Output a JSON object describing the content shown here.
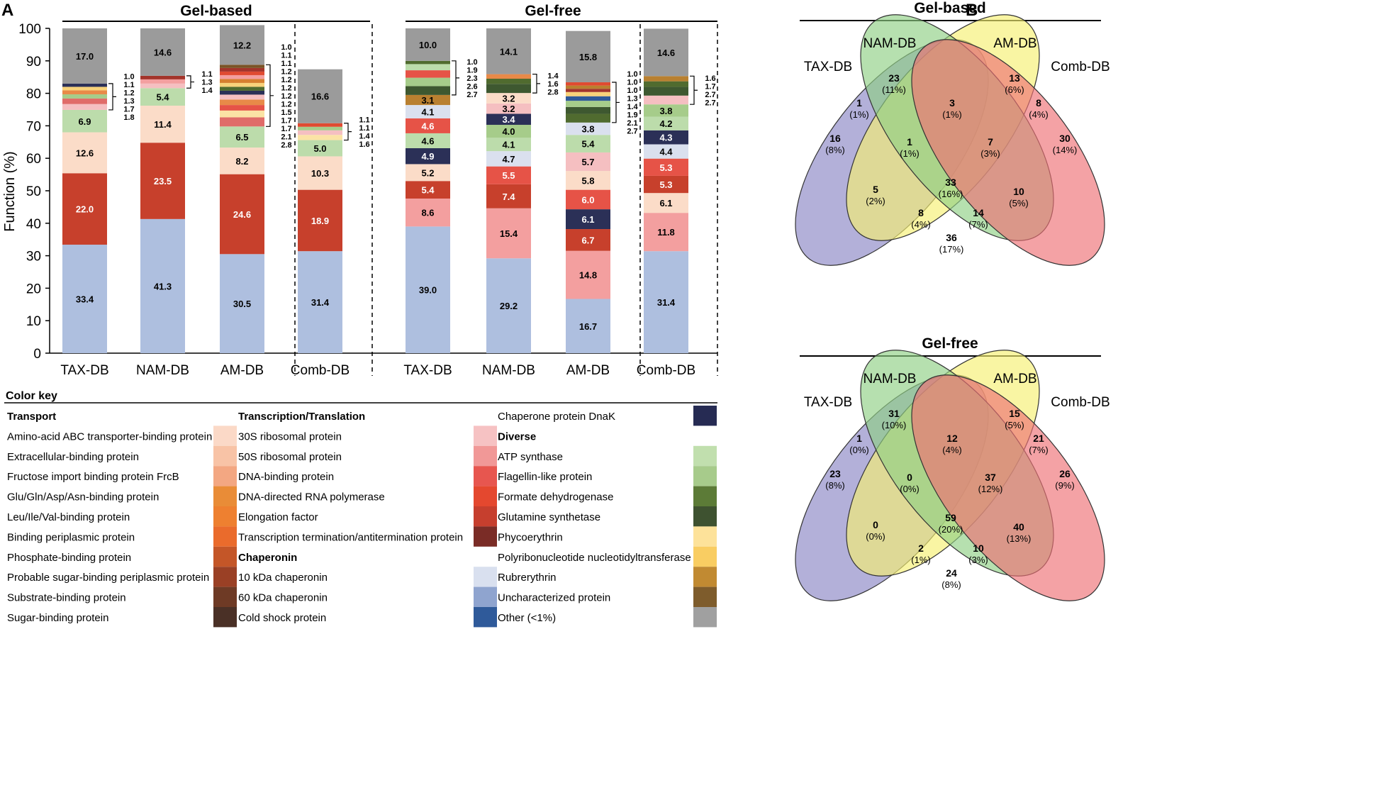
{
  "panel_a_label": "A",
  "panel_b_label": "B",
  "colors": {
    "blue": "#aebfdf",
    "red": "#c7402c",
    "peach": "#fbdcc8",
    "lightgreen": "#bcdcab",
    "gray": "#9b9b9b",
    "pink": "#f39f9f",
    "salmon": "#f5bfc1",
    "redbright": "#e65347",
    "darkred": "#a3342b",
    "navy": "#2b3057",
    "lavender": "#dae0ee",
    "green2": "#a6cc8a",
    "darkgreen": "#506b2f",
    "olive": "#3e5830",
    "orange": "#d67f2f",
    "brown": "#b98030",
    "yellow": "#f8d27a",
    "ltyellow": "#fbe3a5",
    "amber": "#e88a48",
    "redorange": "#e04a31",
    "mauve": "#e06c69",
    "darkbrown": "#7a5427",
    "blue2": "#2f5a9a"
  },
  "chart_data": [
    {
      "type": "stacked_bar",
      "title_groups": [
        "Gel-based",
        "Gel-free"
      ],
      "ylabel": "Function (%)",
      "ylim": [
        0,
        100
      ],
      "yticks": [
        "0",
        "10",
        "20",
        "30",
        "40",
        "50",
        "60",
        "70",
        "80",
        "90",
        "100"
      ],
      "bars": [
        {
          "label": "TAX-DB",
          "group": "Gel-based",
          "segments": [
            {
              "v": 33.4,
              "c": "blue",
              "t": "33.4"
            },
            {
              "v": 22.0,
              "c": "red",
              "t": "22.0"
            },
            {
              "v": 12.6,
              "c": "peach",
              "t": "12.6"
            },
            {
              "v": 6.9,
              "c": "lightgreen",
              "t": "6.9"
            },
            {
              "v": 1.8,
              "c": "salmon"
            },
            {
              "v": 1.7,
              "c": "mauve"
            },
            {
              "v": 1.3,
              "c": "green2"
            },
            {
              "v": 1.2,
              "c": "amber"
            },
            {
              "v": 1.1,
              "c": "yellow"
            },
            {
              "v": 1.0,
              "c": "navy"
            },
            {
              "v": 17.0,
              "c": "gray",
              "t": "17.0"
            }
          ],
          "side": [
            "1.0",
            "1.1",
            "1.2",
            "1.3",
            "1.7",
            "1.8"
          ]
        },
        {
          "label": "NAM-DB",
          "group": "Gel-based",
          "segments": [
            {
              "v": 41.3,
              "c": "blue",
              "t": "41.3"
            },
            {
              "v": 23.5,
              "c": "red",
              "t": "23.5"
            },
            {
              "v": 11.4,
              "c": "peach",
              "t": "11.4"
            },
            {
              "v": 5.4,
              "c": "lightgreen",
              "t": "5.4"
            },
            {
              "v": 1.4,
              "c": "salmon"
            },
            {
              "v": 1.3,
              "c": "pink"
            },
            {
              "v": 1.1,
              "c": "darkred"
            },
            {
              "v": 14.6,
              "c": "gray",
              "t": "14.6"
            }
          ],
          "side": [
            "1.1",
            "1.3",
            "1.4"
          ]
        },
        {
          "label": "AM-DB",
          "group": "Gel-based",
          "segments": [
            {
              "v": 30.5,
              "c": "blue",
              "t": "30.5"
            },
            {
              "v": 24.6,
              "c": "red",
              "t": "24.6"
            },
            {
              "v": 8.2,
              "c": "peach",
              "t": "8.2"
            },
            {
              "v": 6.5,
              "c": "lightgreen",
              "t": "6.5"
            },
            {
              "v": 2.8,
              "c": "mauve"
            },
            {
              "v": 2.1,
              "c": "ltyellow"
            },
            {
              "v": 1.7,
              "c": "redbright"
            },
            {
              "v": 1.7,
              "c": "amber"
            },
            {
              "v": 1.5,
              "c": "salmon"
            },
            {
              "v": 1.2,
              "c": "navy"
            },
            {
              "v": 1.2,
              "c": "darkgreen"
            },
            {
              "v": 1.2,
              "c": "yellow"
            },
            {
              "v": 1.2,
              "c": "orange"
            },
            {
              "v": 1.2,
              "c": "pink"
            },
            {
              "v": 1.1,
              "c": "redorange"
            },
            {
              "v": 1.1,
              "c": "darkred"
            },
            {
              "v": 1.0,
              "c": "darkbrown"
            },
            {
              "v": 12.2,
              "c": "gray",
              "t": "12.2"
            }
          ],
          "side": [
            "1.0",
            "1.1",
            "1.1",
            "1.2",
            "1.2",
            "1.2",
            "1.2",
            "1.2",
            "1.5",
            "1.7",
            "1.7",
            "2.1",
            "2.8"
          ]
        },
        {
          "label": "Comb-DB",
          "group": "Gel-based",
          "segments": [
            {
              "v": 31.4,
              "c": "blue",
              "t": "31.4"
            },
            {
              "v": 18.9,
              "c": "red",
              "t": "18.9"
            },
            {
              "v": 10.3,
              "c": "peach",
              "t": "10.3"
            },
            {
              "v": 5.0,
              "c": "lightgreen",
              "t": "5.0"
            },
            {
              "v": 1.6,
              "c": "ltyellow"
            },
            {
              "v": 1.4,
              "c": "salmon"
            },
            {
              "v": 1.1,
              "c": "green2"
            },
            {
              "v": 1.1,
              "c": "redorange"
            },
            {
              "v": 16.6,
              "c": "gray",
              "t": "16.6"
            }
          ],
          "side": [
            "1.1",
            "1.1",
            "1.4",
            "1.6"
          ]
        },
        {
          "label": "TAX-DB",
          "group": "Gel-free",
          "segments": [
            {
              "v": 39.0,
              "c": "blue",
              "t": "39.0"
            },
            {
              "v": 8.6,
              "c": "pink",
              "t": "8.6"
            },
            {
              "v": 5.4,
              "c": "red",
              "t": "5.4"
            },
            {
              "v": 5.2,
              "c": "peach",
              "t": "5.2"
            },
            {
              "v": 4.9,
              "c": "navy",
              "t": "4.9"
            },
            {
              "v": 4.6,
              "c": "lightgreen",
              "t": "4.6"
            },
            {
              "v": 4.6,
              "c": "redbright",
              "t": "4.6"
            },
            {
              "v": 4.1,
              "c": "lavender",
              "t": "4.1"
            },
            {
              "v": 3.1,
              "c": "brown",
              "t": "3.1"
            },
            {
              "v": 2.7,
              "c": "olive"
            },
            {
              "v": 2.6,
              "c": "green2"
            },
            {
              "v": 2.3,
              "c": "redbright"
            },
            {
              "v": 1.9,
              "c": "lightgreen"
            },
            {
              "v": 1.0,
              "c": "darkgreen"
            },
            {
              "v": 10.0,
              "c": "gray",
              "t": "10.0"
            }
          ],
          "side": [
            "1.0",
            "1.9",
            "2.3",
            "2.6",
            "2.7"
          ]
        },
        {
          "label": "NAM-DB",
          "group": "Gel-free",
          "segments": [
            {
              "v": 29.2,
              "c": "blue",
              "t": "29.2"
            },
            {
              "v": 15.4,
              "c": "pink",
              "t": "15.4"
            },
            {
              "v": 7.4,
              "c": "red",
              "t": "7.4"
            },
            {
              "v": 5.5,
              "c": "redbright",
              "t": "5.5"
            },
            {
              "v": 4.7,
              "c": "lavender",
              "t": "4.7"
            },
            {
              "v": 4.1,
              "c": "lightgreen",
              "t": "4.1"
            },
            {
              "v": 4.0,
              "c": "green2",
              "t": "4.0"
            },
            {
              "v": 3.4,
              "c": "navy",
              "t": "3.4"
            },
            {
              "v": 3.2,
              "c": "salmon",
              "t": "3.2"
            },
            {
              "v": 3.2,
              "c": "peach",
              "t": "3.2"
            },
            {
              "v": 2.8,
              "c": "olive"
            },
            {
              "v": 1.6,
              "c": "darkgreen"
            },
            {
              "v": 1.4,
              "c": "amber"
            },
            {
              "v": 14.1,
              "c": "gray",
              "t": "14.1"
            }
          ],
          "side": [
            "1.4",
            "1.6",
            "2.8"
          ]
        },
        {
          "label": "AM-DB",
          "group": "Gel-free",
          "segments": [
            {
              "v": 16.7,
              "c": "blue",
              "t": "16.7"
            },
            {
              "v": 14.8,
              "c": "pink",
              "t": "14.8"
            },
            {
              "v": 6.7,
              "c": "red",
              "t": "6.7"
            },
            {
              "v": 6.1,
              "c": "navy",
              "t": "6.1"
            },
            {
              "v": 6.0,
              "c": "redbright",
              "t": "6.0"
            },
            {
              "v": 5.8,
              "c": "peach",
              "t": "5.8"
            },
            {
              "v": 5.7,
              "c": "salmon",
              "t": "5.7"
            },
            {
              "v": 5.4,
              "c": "lightgreen",
              "t": "5.4"
            },
            {
              "v": 3.8,
              "c": "lavender",
              "t": "3.8"
            },
            {
              "v": 2.7,
              "c": "darkgreen"
            },
            {
              "v": 2.1,
              "c": "olive"
            },
            {
              "v": 1.9,
              "c": "green2"
            },
            {
              "v": 1.4,
              "c": "blue2"
            },
            {
              "v": 1.3,
              "c": "yellow"
            },
            {
              "v": 1.0,
              "c": "darkred"
            },
            {
              "v": 1.0,
              "c": "brown"
            },
            {
              "v": 1.0,
              "c": "redorange"
            },
            {
              "v": 15.8,
              "c": "gray",
              "t": "15.8"
            }
          ],
          "side": [
            "1.0",
            "1.0",
            "1.0",
            "1.3",
            "1.4",
            "1.9",
            "2.1",
            "2.7"
          ]
        },
        {
          "label": "Comb-DB",
          "group": "Gel-free",
          "segments": [
            {
              "v": 31.4,
              "c": "blue",
              "t": "31.4"
            },
            {
              "v": 11.8,
              "c": "pink",
              "t": "11.8"
            },
            {
              "v": 6.1,
              "c": "peach",
              "t": "6.1"
            },
            {
              "v": 5.3,
              "c": "red",
              "t": "5.3"
            },
            {
              "v": 5.3,
              "c": "redbright",
              "t": "5.3"
            },
            {
              "v": 4.4,
              "c": "lavender",
              "t": "4.4"
            },
            {
              "v": 4.3,
              "c": "navy",
              "t": "4.3"
            },
            {
              "v": 4.2,
              "c": "lightgreen",
              "t": "4.2"
            },
            {
              "v": 3.8,
              "c": "green2",
              "t": "3.8"
            },
            {
              "v": 2.7,
              "c": "salmon"
            },
            {
              "v": 2.7,
              "c": "olive"
            },
            {
              "v": 1.7,
              "c": "darkgreen"
            },
            {
              "v": 1.6,
              "c": "brown"
            },
            {
              "v": 14.6,
              "c": "gray",
              "t": "14.6"
            }
          ],
          "side": [
            "1.6",
            "1.7",
            "2.7",
            "2.7"
          ]
        }
      ]
    },
    {
      "type": "venn",
      "title": "Gel-based",
      "sets": [
        "TAX-DB",
        "NAM-DB",
        "AM-DB",
        "Comb-DB"
      ],
      "regions": [
        {
          "key": "T",
          "n": "16",
          "p": "(8%)"
        },
        {
          "key": "N",
          "n": "23",
          "p": "(11%)"
        },
        {
          "key": "A",
          "n": "13",
          "p": "(6%)"
        },
        {
          "key": "C",
          "n": "30",
          "p": "(14%)"
        },
        {
          "key": "TN",
          "n": "1",
          "p": "(1%)"
        },
        {
          "key": "NA",
          "n": "3",
          "p": "(1%)"
        },
        {
          "key": "AC",
          "n": "8",
          "p": "(4%)"
        },
        {
          "key": "TNA",
          "n": "1",
          "p": "(1%)"
        },
        {
          "key": "NAC",
          "n": "7",
          "p": "(3%)"
        },
        {
          "key": "TNAC",
          "n": "33",
          "p": "(16%)"
        },
        {
          "key": "TA",
          "n": "5",
          "p": "(2%)"
        },
        {
          "key": "NC",
          "n": "10",
          "p": "(5%)"
        },
        {
          "key": "TAC",
          "n": "8",
          "p": "(4%)"
        },
        {
          "key": "TNC",
          "n": "14",
          "p": "(7%)"
        },
        {
          "key": "TC",
          "n": "36",
          "p": "(17%)"
        }
      ]
    },
    {
      "type": "venn",
      "title": "Gel-free",
      "sets": [
        "TAX-DB",
        "NAM-DB",
        "AM-DB",
        "Comb-DB"
      ],
      "regions": [
        {
          "key": "T",
          "n": "23",
          "p": "(8%)"
        },
        {
          "key": "N",
          "n": "31",
          "p": "(10%)"
        },
        {
          "key": "A",
          "n": "15",
          "p": "(5%)"
        },
        {
          "key": "C",
          "n": "26",
          "p": "(9%)"
        },
        {
          "key": "TN",
          "n": "1",
          "p": "(0%)"
        },
        {
          "key": "NA",
          "n": "12",
          "p": "(4%)"
        },
        {
          "key": "AC",
          "n": "21",
          "p": "(7%)"
        },
        {
          "key": "TNA",
          "n": "0",
          "p": "(0%)"
        },
        {
          "key": "NAC",
          "n": "37",
          "p": "(12%)"
        },
        {
          "key": "TNAC",
          "n": "59",
          "p": "(20%)"
        },
        {
          "key": "TA",
          "n": "0",
          "p": "(0%)"
        },
        {
          "key": "NC",
          "n": "40",
          "p": "(13%)"
        },
        {
          "key": "TAC",
          "n": "2",
          "p": "(1%)"
        },
        {
          "key": "TNC",
          "n": "10",
          "p": "(3%)"
        },
        {
          "key": "TC",
          "n": "24",
          "p": "(8%)"
        }
      ]
    }
  ],
  "color_key": {
    "title": "Color key",
    "columns": [
      [
        {
          "text": "Transport",
          "bold": true
        },
        {
          "text": "Amino-acid ABC transporter-binding protein",
          "c": "#fbd9c7"
        },
        {
          "text": "Extracellular-binding protein",
          "c": "#f8c3a6"
        },
        {
          "text": "Fructose import binding protein FrcB",
          "c": "#f3a782"
        },
        {
          "text": "Glu/Gln/Asp/Asn-binding protein",
          "c": "#e98c37"
        },
        {
          "text": "Leu/Ile/Val-binding protein",
          "c": "#ee8030"
        },
        {
          "text": "Binding periplasmic protein",
          "c": "#ea6b2c"
        },
        {
          "text": "Phosphate-binding protein",
          "c": "#c45628"
        },
        {
          "text": "Probable sugar-binding periplasmic protein",
          "c": "#9a4025"
        },
        {
          "text": "Substrate-binding protein",
          "c": "#6e3a25"
        },
        {
          "text": "Sugar-binding protein",
          "c": "#4a3026"
        }
      ],
      [
        {
          "text": "Transcription/Translation",
          "bold": true
        },
        {
          "text": "30S ribosomal protein",
          "c": "#f6c2c3"
        },
        {
          "text": "50S ribosomal protein",
          "c": "#f19897"
        },
        {
          "text": "DNA-binding protein",
          "c": "#e7564f"
        },
        {
          "text": "DNA-directed RNA polymerase",
          "c": "#e4482f"
        },
        {
          "text": "Elongation factor",
          "c": "#c63f2e"
        },
        {
          "text": "Transcription termination/antitermination protein",
          "c": "#7a2c26"
        },
        {
          "text": "Chaperonin",
          "bold": true
        },
        {
          "text": "10 kDa chaperonin",
          "c": "#d9e0ef"
        },
        {
          "text": "60 kDa chaperonin",
          "c": "#8fa4cf"
        },
        {
          "text": "Cold shock protein",
          "c": "#2f5a9a"
        }
      ],
      [
        {
          "text": "Chaperone protein DnaK",
          "c": "#262b53"
        },
        {
          "text": "Diverse",
          "bold": true
        },
        {
          "text": "ATP synthase",
          "c": "#c1dfae"
        },
        {
          "text": "Flagellin-like protein",
          "c": "#a7cb8b"
        },
        {
          "text": "Formate dehydrogenase",
          "c": "#5c7b37"
        },
        {
          "text": "Glutamine synthetase",
          "c": "#3e5230"
        },
        {
          "text": "Phycoerythrin",
          "c": "#fde29a"
        },
        {
          "text": "Polyribonucleotide nucleotidyltransferase",
          "c": "#f9cd62"
        },
        {
          "text": "Rubrerythrin",
          "c": "#c18a32"
        },
        {
          "text": "Uncharacterized protein",
          "c": "#7e5c2c"
        },
        {
          "text": "Other (<1%)",
          "c": "#a0a0a0"
        }
      ]
    ]
  }
}
